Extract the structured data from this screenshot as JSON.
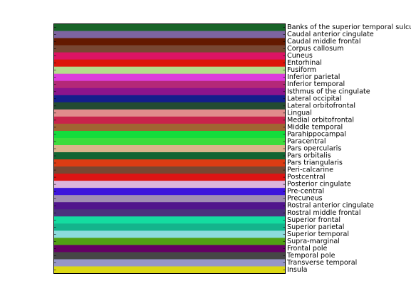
{
  "chart_data": {
    "type": "bar",
    "orientation": "horizontal",
    "title": "",
    "xlabel": "",
    "ylabel": "",
    "grid": false,
    "legend": "none",
    "ylabels_side": "right",
    "categories": [
      "Banks of the superior temporal sulcus",
      "Caudal anterior cingulate",
      "Caudal middle frontal",
      "Corpus callosum",
      "Cuneus",
      "Entorhinal",
      "Fusiform",
      "Inferior parietal",
      "Inferior temporal",
      "Isthmus of the cingulate",
      "Lateral occipital",
      "Lateral orbitofrontal",
      "Lingual",
      "Medial orbitofrontal",
      "Middle temporal",
      "Parahippocampal",
      "Paracentral",
      "Pars opercularis",
      "Pars orbitalis",
      "Pars triangularis",
      "Peri-calcarine",
      "Postcentral",
      "Posterior cingulate",
      "Pre-central",
      "Precuneus",
      "Rostral anterior cingulate",
      "Rostral middle frontal",
      "Superior frontal",
      "Superior parietal",
      "Superior temporal",
      "Supra-marginal",
      "Frontal pole",
      "Temporal pole",
      "Transverse temporal",
      "Insula"
    ],
    "colors": [
      "#196428",
      "#7d64a0",
      "#641900",
      "#784632",
      "#dc1464",
      "#dc140a",
      "#b4dc8c",
      "#dc3cdc",
      "#b42878",
      "#8c148c",
      "#141e8c",
      "#234b32",
      "#e18c8c",
      "#c8234b",
      "#a06432",
      "#14dc3c",
      "#3cdc3c",
      "#dcb48c",
      "#146432",
      "#dc3c14",
      "#784632",
      "#dc1414",
      "#dcb4dc",
      "#3c14dc",
      "#a08cb4",
      "#50148c",
      "#4b327d",
      "#14dca0",
      "#14b48c",
      "#8cdcdc",
      "#50a014",
      "#640064",
      "#464646",
      "#9696c8",
      "#dcd814"
    ]
  }
}
